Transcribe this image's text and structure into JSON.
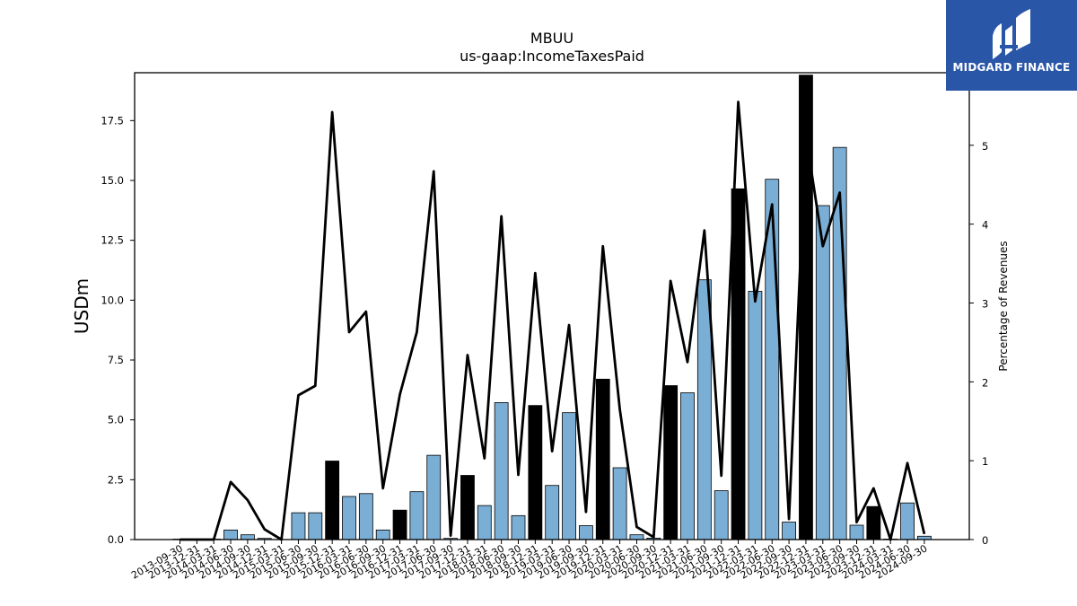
{
  "logo": {
    "text": "MIDGARD FINANCE",
    "color": "#2a56a8",
    "icon": "midgard-logo-icon"
  },
  "chart_data": {
    "type": "bar",
    "title": "MBUU",
    "subtitle": "us-gaap:IncomeTaxesPaid",
    "ylabel": "USDm",
    "y2label": "Percentage of Revenues",
    "ylim": [
      0,
      19.5
    ],
    "y2lim": [
      0,
      5.92
    ],
    "yticks": [
      "0.0",
      "2.5",
      "5.0",
      "7.5",
      "10.0",
      "12.5",
      "15.0",
      "17.5"
    ],
    "y2ticks": [
      "0",
      "1",
      "2",
      "3",
      "4",
      "5"
    ],
    "colors": {
      "quarter": "#7aaed4",
      "fiscal_year": "#000000",
      "line": "#000000"
    },
    "categories": [
      "2013-09-30",
      "2013-12-31",
      "2014-03-31",
      "2014-06-30",
      "2014-09-30",
      "2014-12-31",
      "2015-03-31",
      "2015-06-30",
      "2015-09-30",
      "2015-12-31",
      "2016-03-31",
      "2016-06-30",
      "2016-09-30",
      "2016-12-31",
      "2017-03-31",
      "2017-06-30",
      "2017-09-30",
      "2017-12-31",
      "2018-03-31",
      "2018-06-30",
      "2018-09-30",
      "2018-12-31",
      "2019-03-31",
      "2019-06-30",
      "2019-09-30",
      "2019-12-31",
      "2020-03-31",
      "2020-06-30",
      "2020-09-30",
      "2020-12-31",
      "2021-03-31",
      "2021-06-30",
      "2021-09-30",
      "2021-12-31",
      "2022-03-31",
      "2022-06-30",
      "2022-09-30",
      "2022-12-31",
      "2023-03-31",
      "2023-06-30",
      "2023-09-30",
      "2023-12-31",
      "2024-03-31",
      "2024-06-30",
      "2024-09-30"
    ],
    "values": [
      0.02,
      0.02,
      0.02,
      0.4,
      0.2,
      0.05,
      0.0,
      1.12,
      1.12,
      3.28,
      1.8,
      1.92,
      0.4,
      1.23,
      2.0,
      3.52,
      0.05,
      2.68,
      1.42,
      5.72,
      1.0,
      5.6,
      2.26,
      5.3,
      0.58,
      6.7,
      3.0,
      0.2,
      0.06,
      6.43,
      6.13,
      10.85,
      2.04,
      14.65,
      10.37,
      15.05,
      0.73,
      19.4,
      13.95,
      16.38,
      0.6,
      1.38,
      0.02,
      1.53,
      0.14
    ],
    "fiscal_year_end": [
      false,
      false,
      false,
      false,
      false,
      false,
      false,
      false,
      false,
      true,
      false,
      false,
      false,
      true,
      false,
      false,
      false,
      true,
      false,
      false,
      false,
      true,
      false,
      false,
      false,
      true,
      false,
      false,
      false,
      true,
      false,
      false,
      false,
      true,
      false,
      false,
      false,
      true,
      false,
      false,
      false,
      true,
      false,
      false,
      false
    ],
    "series": [
      {
        "name": "Percentage of Revenues",
        "axis": "right",
        "values": [
          0,
          0,
          0,
          0.73,
          0.5,
          0.13,
          0,
          1.83,
          1.95,
          5.42,
          2.63,
          2.89,
          0.65,
          1.84,
          2.63,
          4.67,
          0.05,
          2.34,
          1.03,
          4.1,
          0.82,
          3.38,
          1.12,
          2.72,
          0.35,
          3.72,
          1.65,
          0.16,
          0.03,
          3.28,
          2.25,
          3.92,
          0.81,
          5.55,
          3.02,
          4.25,
          0.26,
          5.13,
          3.72,
          4.4,
          0.22,
          0.65,
          0,
          0.97,
          0.07
        ]
      }
    ]
  }
}
